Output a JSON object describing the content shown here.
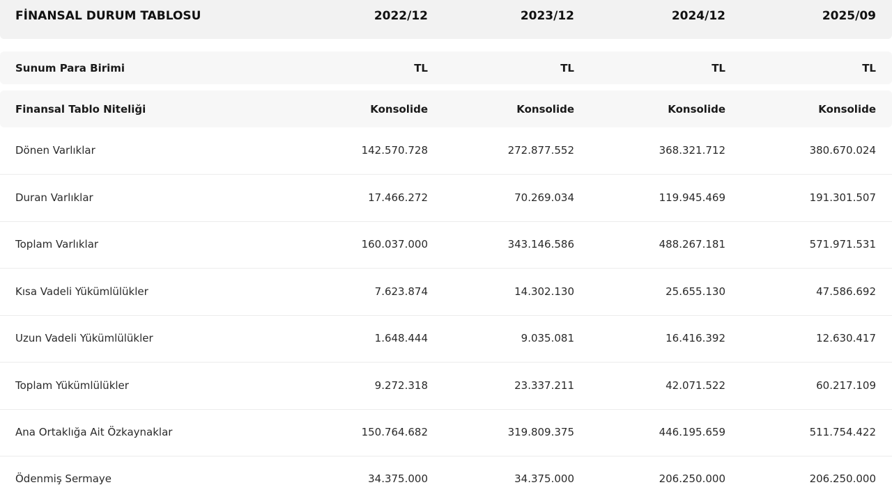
{
  "header": {
    "title": "FİNANSAL DURUM TABLOSU",
    "periods": [
      "2022/12",
      "2023/12",
      "2024/12",
      "2025/09"
    ]
  },
  "meta_rows": [
    {
      "label": "Sunum Para Birimi",
      "values": [
        "TL",
        "TL",
        "TL",
        "TL"
      ]
    },
    {
      "label": "Finansal Tablo Niteliği",
      "values": [
        "Konsolide",
        "Konsolide",
        "Konsolide",
        "Konsolide"
      ]
    }
  ],
  "rows": [
    {
      "label": "Dönen Varlıklar",
      "values": [
        "142.570.728",
        "272.877.552",
        "368.321.712",
        "380.670.024"
      ]
    },
    {
      "label": "Duran Varlıklar",
      "values": [
        "17.466.272",
        "70.269.034",
        "119.945.469",
        "191.301.507"
      ]
    },
    {
      "label": "Toplam Varlıklar",
      "values": [
        "160.037.000",
        "343.146.586",
        "488.267.181",
        "571.971.531"
      ]
    },
    {
      "label": "Kısa Vadeli Yükümlülükler",
      "values": [
        "7.623.874",
        "14.302.130",
        "25.655.130",
        "47.586.692"
      ]
    },
    {
      "label": "Uzun Vadeli Yükümlülükler",
      "values": [
        "1.648.444",
        "9.035.081",
        "16.416.392",
        "12.630.417"
      ]
    },
    {
      "label": "Toplam Yükümlülükler",
      "values": [
        "9.272.318",
        "23.337.211",
        "42.071.522",
        "60.217.109"
      ]
    },
    {
      "label": "Ana Ortaklığa Ait Özkaynaklar",
      "values": [
        "150.764.682",
        "319.809.375",
        "446.195.659",
        "511.754.422"
      ]
    },
    {
      "label": "Ödenmiş Sermaye",
      "values": [
        "34.375.000",
        "34.375.000",
        "206.250.000",
        "206.250.000"
      ]
    }
  ]
}
